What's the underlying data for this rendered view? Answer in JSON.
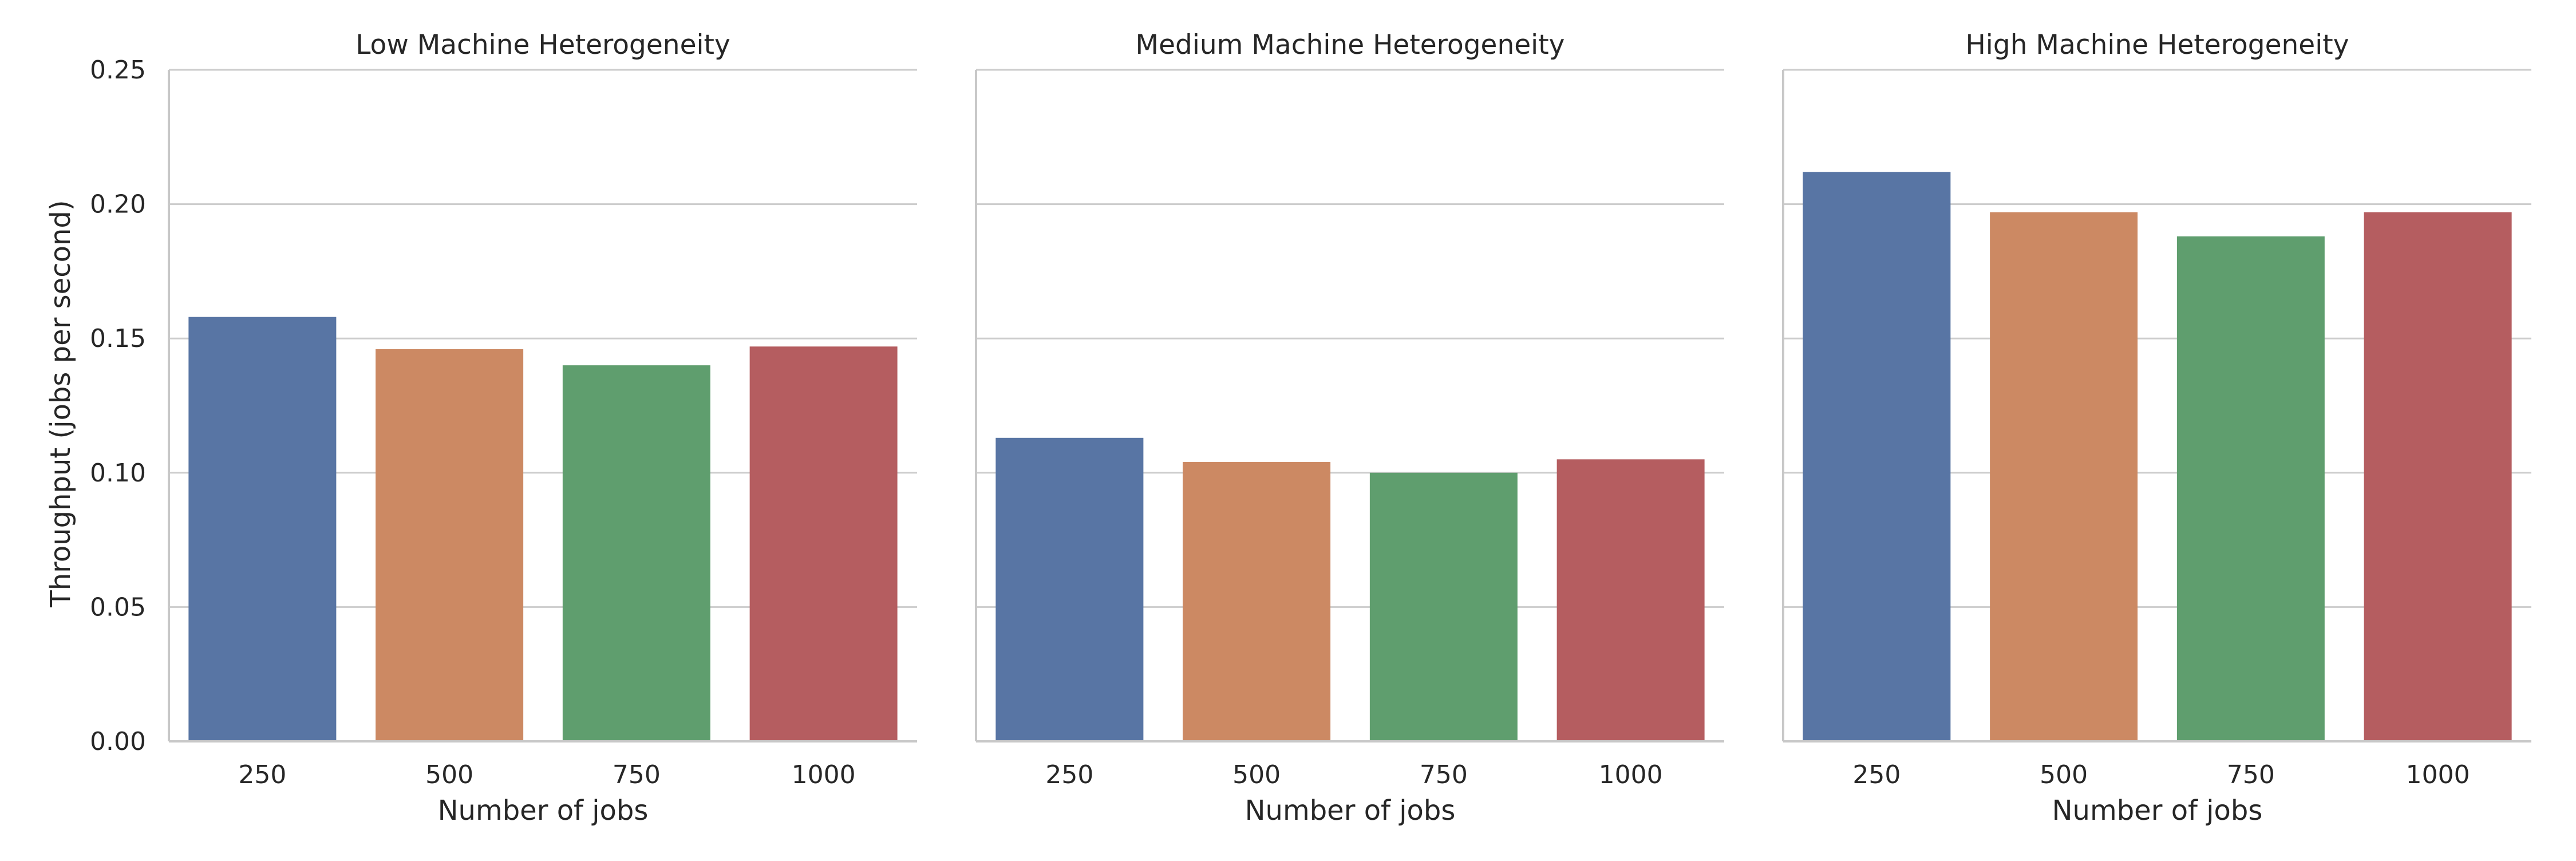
{
  "chart_data": {
    "type": "bar",
    "layout": "facet-grid",
    "shared_y": true,
    "ylabel": "Throughput (jobs per second)",
    "xlabel": "Number of jobs",
    "ylim": [
      0,
      0.25
    ],
    "yticks": [
      "0.00",
      "0.05",
      "0.10",
      "0.15",
      "0.20",
      "0.25"
    ],
    "grid": "horizontal",
    "legend": "none",
    "categories": [
      "250",
      "500",
      "750",
      "1000"
    ],
    "colors": [
      "#5875a4",
      "#cc8963",
      "#5f9e6e",
      "#b55d60"
    ],
    "panels": [
      {
        "title": "Low Machine Heterogeneity",
        "values": [
          0.158,
          0.146,
          0.14,
          0.147
        ]
      },
      {
        "title": "Medium Machine Heterogeneity",
        "values": [
          0.113,
          0.104,
          0.1,
          0.105
        ]
      },
      {
        "title": "High Machine Heterogeneity",
        "values": [
          0.212,
          0.197,
          0.188,
          0.197
        ]
      }
    ]
  }
}
